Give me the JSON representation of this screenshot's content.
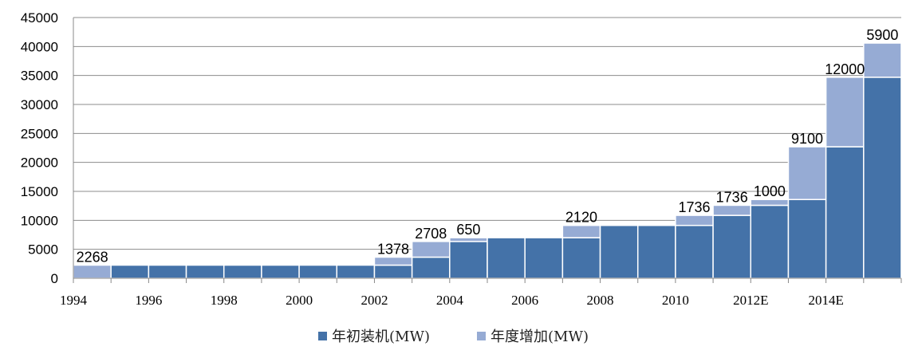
{
  "chart_data": {
    "type": "bar",
    "stacked": true,
    "categories": [
      "1994",
      "1995",
      "1996",
      "1997",
      "1998",
      "1999",
      "2000",
      "2001",
      "2002",
      "2003",
      "2004",
      "2005",
      "2006",
      "2007",
      "2008",
      "2009",
      "2010",
      "2011",
      "2012E",
      "2013E",
      "2014E",
      "2015E"
    ],
    "x_tick_labels": [
      "1994",
      "",
      "1996",
      "",
      "1998",
      "",
      "2000",
      "",
      "2002",
      "",
      "2004",
      "",
      "2006",
      "",
      "2008",
      "",
      "2010",
      "",
      "2012E",
      "",
      "2014E",
      ""
    ],
    "series": [
      {
        "name": "年初装机(MW)",
        "color": "#4472a8",
        "values": [
          0,
          2268,
          2268,
          2268,
          2268,
          2268,
          2268,
          2268,
          2268,
          3646,
          6354,
          7004,
          7004,
          7004,
          9124,
          9124,
          9124,
          10860,
          12596,
          13596,
          22696,
          34696
        ]
      },
      {
        "name": "年度增加(MW)",
        "color": "#96abd4",
        "values": [
          2268,
          0,
          0,
          0,
          0,
          0,
          0,
          0,
          1378,
          2708,
          650,
          0,
          0,
          2120,
          0,
          0,
          1736,
          1736,
          1000,
          9100,
          12000,
          5900
        ]
      }
    ],
    "data_labels": [
      "2268",
      "",
      "",
      "",
      "",
      "",
      "",
      "",
      "1378",
      "2708",
      "650",
      "",
      "",
      "2120",
      "",
      "",
      "1736",
      "1736",
      "1000",
      "9100",
      "12000",
      "5900"
    ],
    "y_ticks": [
      "0",
      "5000",
      "10000",
      "15000",
      "20000",
      "25000",
      "30000",
      "35000",
      "40000",
      "45000"
    ],
    "ylim": [
      0,
      45000
    ],
    "grid": true,
    "legend_position": "bottom-center",
    "legend": [
      "年初装机(MW)",
      "年度增加(MW)"
    ]
  }
}
